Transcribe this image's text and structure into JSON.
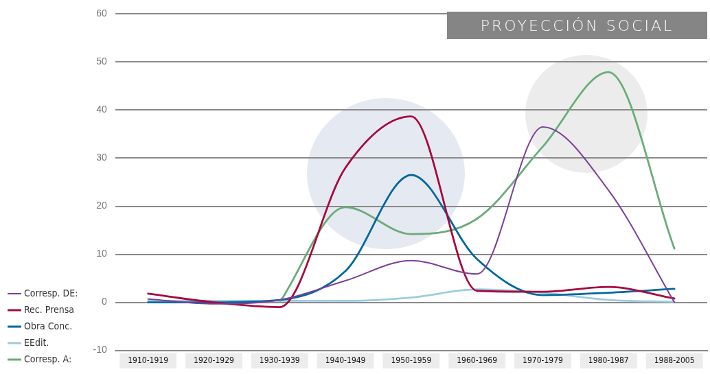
{
  "chart_data": {
    "type": "line",
    "title": "PROYECCIÓN SOCIAL",
    "categories": [
      "1910-1919",
      "1920-1929",
      "1930-1939",
      "1940-1949",
      "1950-1959",
      "1960-1969",
      "1970-1979",
      "1980-1987",
      "1988-2005"
    ],
    "series": [
      {
        "name": "Corresp. DE:",
        "color": "#7b3f98",
        "values": [
          0.7,
          -0.3,
          0.5,
          4.5,
          8.7,
          5.9,
          36.5,
          23.3,
          0
        ]
      },
      {
        "name": "Rec. Prensa",
        "color": "#a6093d",
        "values": [
          1.8,
          0,
          -1,
          28,
          38.7,
          2.4,
          2.2,
          3.2,
          0.8
        ]
      },
      {
        "name": "Obra Conc.",
        "color": "#00679e",
        "values": [
          0,
          0,
          0.5,
          6.5,
          26.5,
          9,
          1.5,
          2,
          2.8
        ]
      },
      {
        "name": "EEdit.",
        "color": "#9ccbe0",
        "values": [
          0.3,
          0.3,
          0.3,
          0.3,
          1,
          2.7,
          2,
          0.5,
          0.1
        ]
      },
      {
        "name": "Corresp. A:",
        "color": "#6aac78",
        "values": [
          null,
          null,
          0,
          19.8,
          14.2,
          17.4,
          32.4,
          47.9,
          11.2
        ]
      }
    ],
    "ylim": [
      -10,
      60
    ],
    "yticks": [
      -10,
      0,
      10,
      20,
      30,
      40,
      50,
      60
    ],
    "grid": "y",
    "legend": "bottom left",
    "marker": "none",
    "line_style": "solid"
  }
}
